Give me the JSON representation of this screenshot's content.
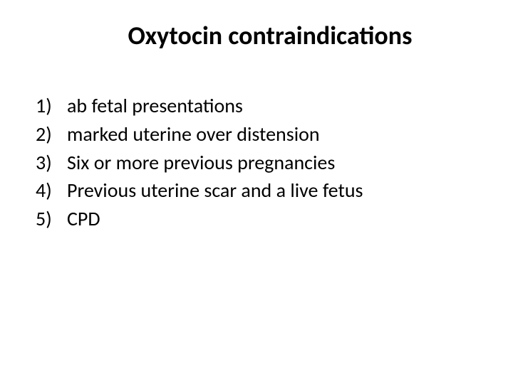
{
  "slide": {
    "title": "Oxytocin contraindications",
    "title_fontsize": 36,
    "title_fontweight": 700,
    "title_color": "#000000",
    "body_fontsize": 28,
    "body_color": "#000000",
    "background_color": "#ffffff",
    "list_type": "ordered-parenthesis",
    "items": [
      {
        "marker": "1)",
        "text": "ab fetal presentations"
      },
      {
        "marker": "2)",
        "text": "marked uterine over distension"
      },
      {
        "marker": "3)",
        "text": "Six or more previous pregnancies"
      },
      {
        "marker": "4)",
        "text": "Previous uterine scar and a live fetus"
      },
      {
        "marker": "5)",
        "text": "CPD"
      }
    ]
  }
}
